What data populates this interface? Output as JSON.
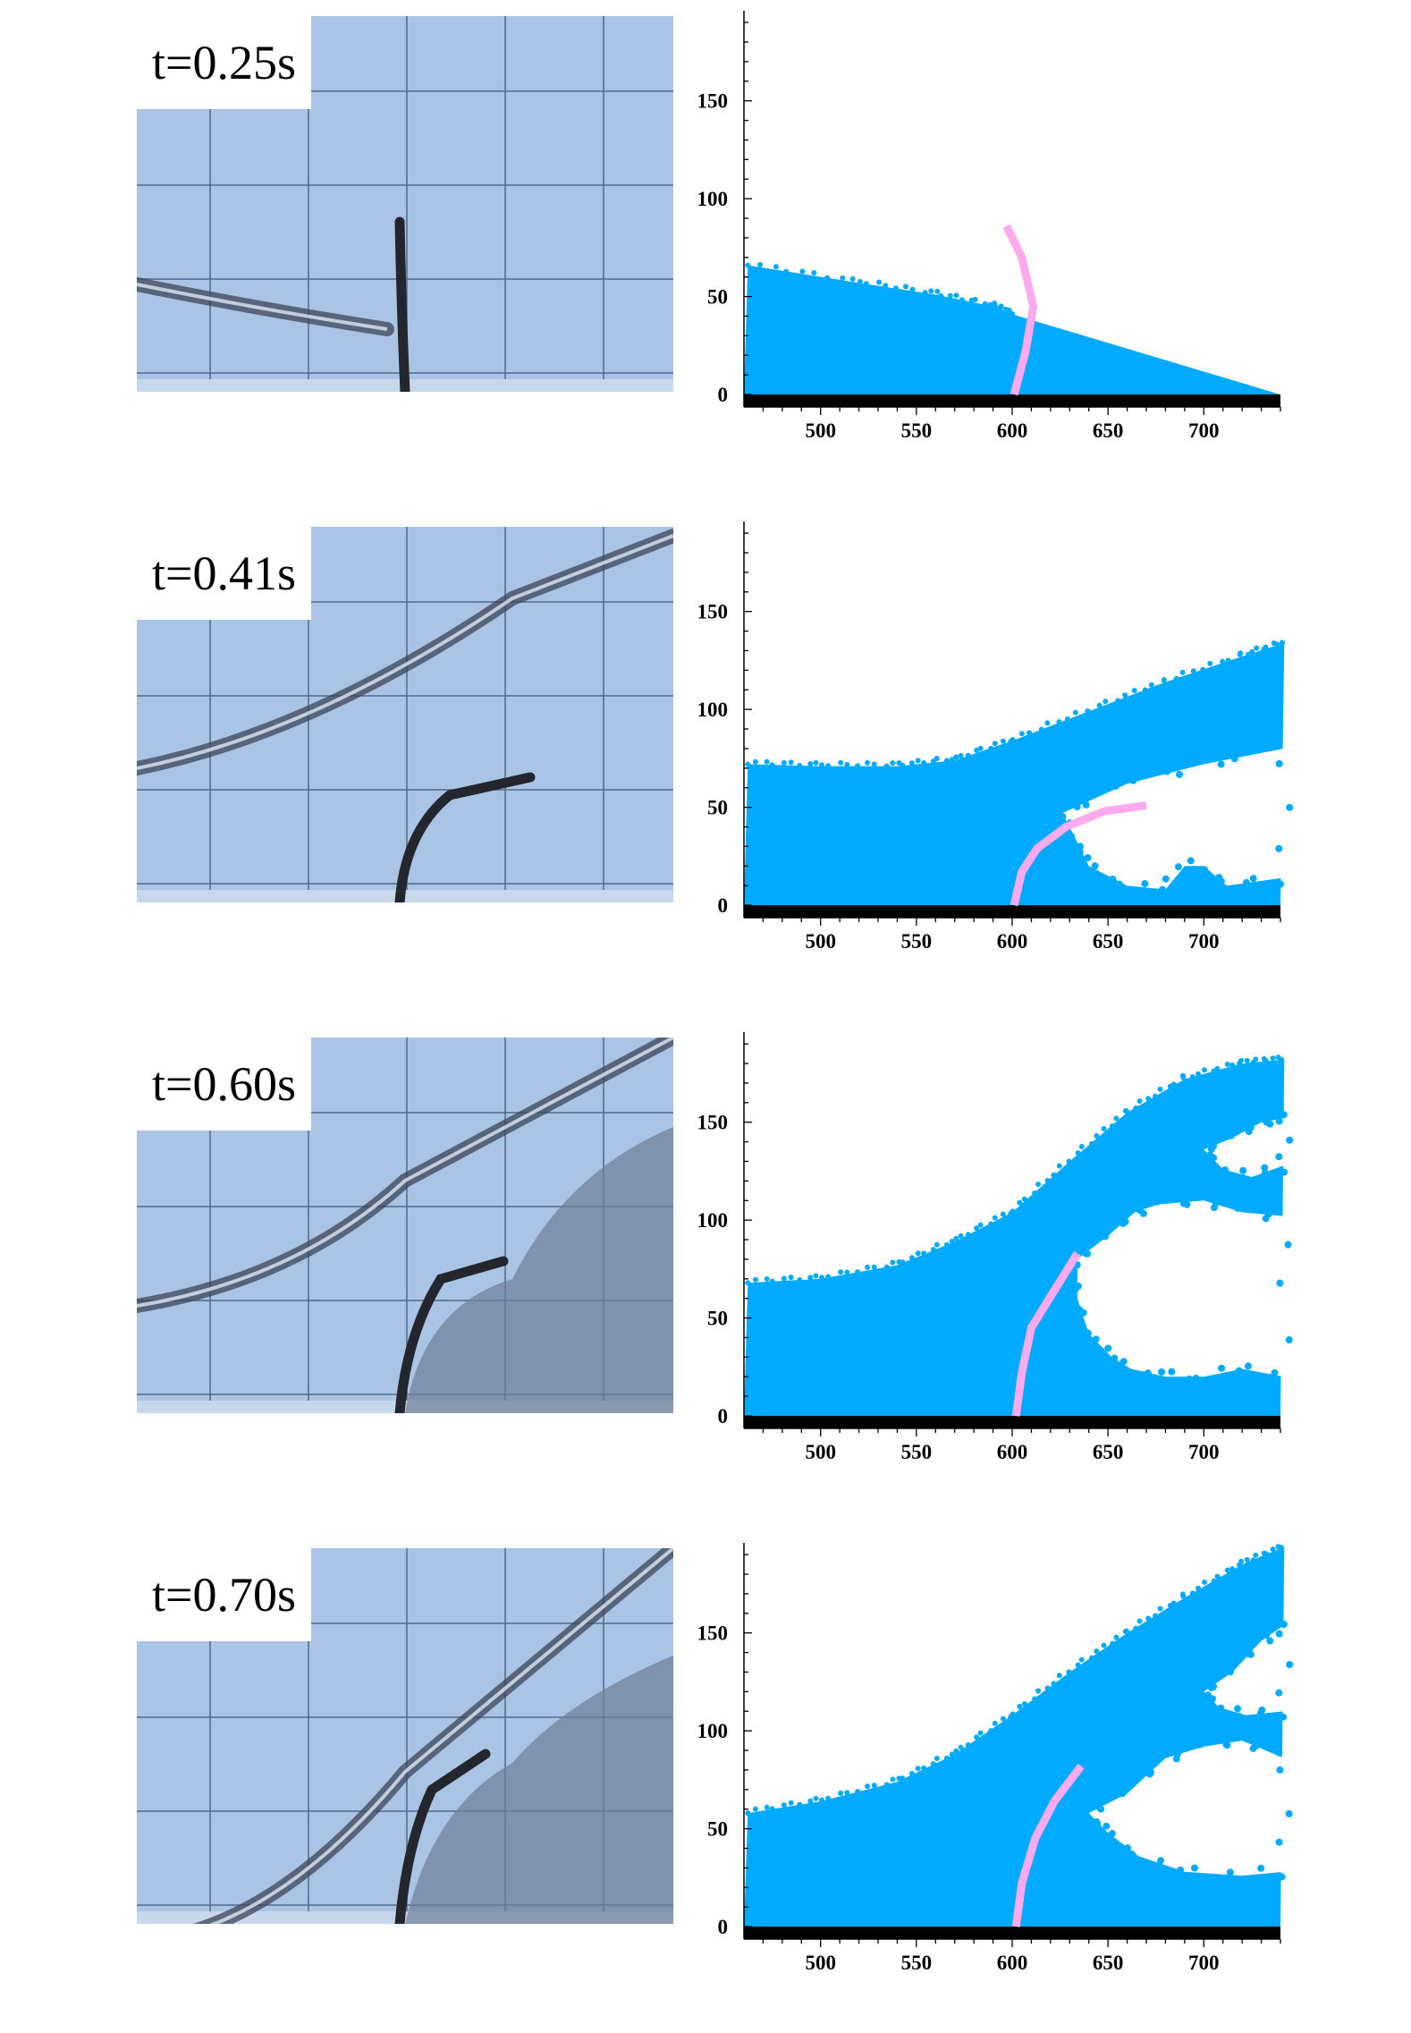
{
  "panels": [
    {
      "time_label": "t=0.25s",
      "water_color": "#00aaff",
      "plate_color": "#ffaaee",
      "ground_color": "#000000",
      "free_surface": [
        [
          462,
          66
        ],
        [
          520,
          57
        ],
        [
          560,
          51
        ],
        [
          590,
          45
        ],
        [
          600,
          41
        ]
      ],
      "plate": [
        [
          597,
          86
        ],
        [
          605,
          70
        ],
        [
          611,
          45
        ],
        [
          607,
          22
        ],
        [
          601,
          0
        ]
      ],
      "voids": []
    },
    {
      "time_label": "t=0.41s",
      "water_color": "#00aaff",
      "plate_color": "#ffaaee",
      "ground_color": "#000000",
      "free_surface": [
        [
          462,
          72
        ],
        [
          500,
          71
        ],
        [
          540,
          71
        ],
        [
          570,
          74
        ],
        [
          600,
          84
        ],
        [
          640,
          99
        ],
        [
          680,
          114
        ],
        [
          720,
          127
        ],
        [
          742,
          134
        ]
      ],
      "plate": [
        [
          601,
          0
        ],
        [
          605,
          17
        ],
        [
          613,
          29
        ],
        [
          628,
          40
        ],
        [
          648,
          48
        ],
        [
          670,
          51
        ]
      ],
      "voids": [
        {
          "outline": [
            [
              626,
              47
            ],
            [
              660,
              62
            ],
            [
              700,
              72
            ],
            [
              742,
              80
            ],
            [
              742,
              14
            ],
            [
              712,
              10
            ],
            [
              700,
              20
            ],
            [
              690,
              20
            ],
            [
              680,
              8
            ],
            [
              660,
              10
            ],
            [
              640,
              20
            ],
            [
              632,
              36
            ]
          ]
        }
      ]
    },
    {
      "time_label": "t=0.60s",
      "water_color": "#00aaff",
      "plate_color": "#ffaaee",
      "ground_color": "#000000",
      "free_surface": [
        [
          462,
          68
        ],
        [
          500,
          70
        ],
        [
          540,
          77
        ],
        [
          570,
          89
        ],
        [
          600,
          104
        ],
        [
          630,
          130
        ],
        [
          660,
          155
        ],
        [
          690,
          172
        ],
        [
          720,
          180
        ],
        [
          742,
          182
        ]
      ],
      "plate": [
        [
          602,
          0
        ],
        [
          605,
          22
        ],
        [
          610,
          45
        ],
        [
          620,
          61
        ],
        [
          634,
          83
        ]
      ],
      "voids": [
        {
          "outline": [
            [
              634,
              80
            ],
            [
              650,
              92
            ],
            [
              664,
              104
            ],
            [
              676,
              108
            ],
            [
              700,
              110
            ],
            [
              720,
              104
            ],
            [
              742,
              102
            ],
            [
              742,
              20
            ],
            [
              720,
              24
            ],
            [
              700,
              20
            ],
            [
              680,
              20
            ],
            [
              662,
              24
            ],
            [
              652,
              30
            ],
            [
              640,
              42
            ],
            [
              634,
              60
            ]
          ]
        },
        {
          "outline": [
            [
              700,
              136
            ],
            [
              715,
              142
            ],
            [
              730,
              150
            ],
            [
              742,
              152
            ],
            [
              742,
              128
            ],
            [
              725,
              122
            ],
            [
              710,
              126
            ]
          ]
        }
      ]
    },
    {
      "time_label": "t=0.70s",
      "water_color": "#00aaff",
      "plate_color": "#ffaaee",
      "ground_color": "#000000",
      "free_surface": [
        [
          462,
          58
        ],
        [
          500,
          64
        ],
        [
          540,
          74
        ],
        [
          570,
          88
        ],
        [
          600,
          108
        ],
        [
          630,
          130
        ],
        [
          660,
          150
        ],
        [
          690,
          168
        ],
        [
          720,
          185
        ],
        [
          742,
          194
        ]
      ],
      "plate": [
        [
          602,
          0
        ],
        [
          605,
          22
        ],
        [
          612,
          45
        ],
        [
          622,
          64
        ],
        [
          636,
          82
        ]
      ],
      "voids": [
        {
          "outline": [
            [
              640,
              58
            ],
            [
              660,
              68
            ],
            [
              680,
              86
            ],
            [
              700,
              92
            ],
            [
              720,
              95
            ],
            [
              742,
              86
            ],
            [
              742,
              28
            ],
            [
              720,
              26
            ],
            [
              690,
              28
            ],
            [
              666,
              36
            ],
            [
              650,
              48
            ]
          ]
        },
        {
          "outline": [
            [
              700,
              120
            ],
            [
              715,
              130
            ],
            [
              730,
              146
            ],
            [
              742,
              154
            ],
            [
              742,
              110
            ],
            [
              722,
              108
            ],
            [
              708,
              112
            ]
          ]
        }
      ]
    }
  ],
  "axes": {
    "x_range": [
      460,
      740
    ],
    "y_range": [
      -5,
      196
    ],
    "x_ticks": [
      "500",
      "550",
      "600",
      "650",
      "700"
    ],
    "y_ticks": [
      "0",
      "50",
      "100",
      "150"
    ]
  }
}
